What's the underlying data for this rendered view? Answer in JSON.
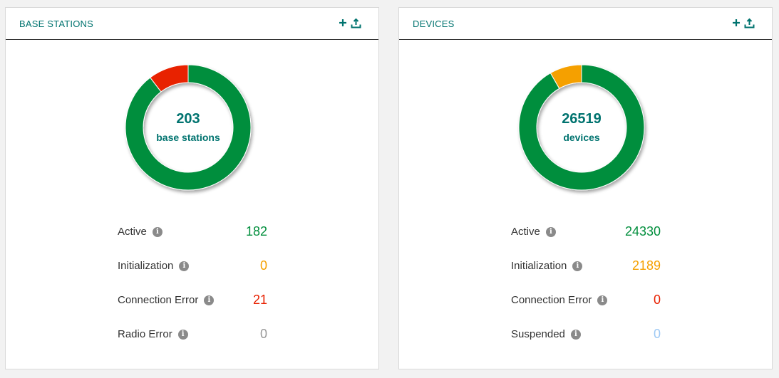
{
  "colors": {
    "accent": "#00736f",
    "active": "#008e3c",
    "initialization": "#f5a000",
    "error": "#e82000",
    "neutral": "#999999",
    "suspended": "#9ec9f5"
  },
  "panels": [
    {
      "title": "BASE STATIONS",
      "total": "203",
      "total_label": "base stations",
      "actions": {
        "add_icon": "plus-icon",
        "upload_icon": "upload-icon"
      },
      "segments": [
        {
          "name": "Active",
          "value": 182,
          "color": "#008e3c"
        },
        {
          "name": "Initialization",
          "value": 0,
          "color": "#f5a000"
        },
        {
          "name": "Connection Error",
          "value": 21,
          "color": "#e82000"
        },
        {
          "name": "Radio Error",
          "value": 0,
          "color": "#999999"
        }
      ],
      "legend": [
        {
          "name": "Active",
          "value": "182",
          "color": "#008e3c"
        },
        {
          "name": "Initialization",
          "value": "0",
          "color": "#f5a000"
        },
        {
          "name": "Connection Error",
          "value": "21",
          "color": "#e82000"
        },
        {
          "name": "Radio Error",
          "value": "0",
          "color": "#999999"
        }
      ]
    },
    {
      "title": "DEVICES",
      "total": "26519",
      "total_label": "devices",
      "actions": {
        "add_icon": "plus-icon",
        "upload_icon": "upload-icon"
      },
      "segments": [
        {
          "name": "Active",
          "value": 24330,
          "color": "#008e3c"
        },
        {
          "name": "Initialization",
          "value": 2189,
          "color": "#f5a000"
        },
        {
          "name": "Connection Error",
          "value": 0,
          "color": "#e82000"
        },
        {
          "name": "Suspended",
          "value": 0,
          "color": "#9ec9f5"
        }
      ],
      "legend": [
        {
          "name": "Active",
          "value": "24330",
          "color": "#008e3c"
        },
        {
          "name": "Initialization",
          "value": "2189",
          "color": "#f5a000"
        },
        {
          "name": "Connection Error",
          "value": "0",
          "color": "#e82000"
        },
        {
          "name": "Suspended",
          "value": "0",
          "color": "#9ec9f5"
        }
      ]
    }
  ]
}
